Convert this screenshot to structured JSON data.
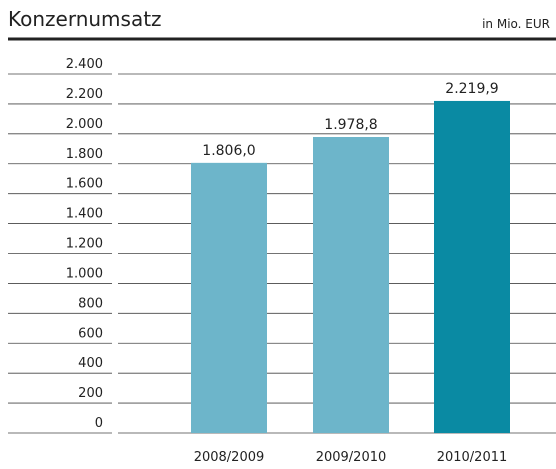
{
  "chart_data": {
    "type": "bar",
    "title": "Konzernumsatz",
    "subtitle": "in Mio. EUR",
    "categories": [
      "2008/2009",
      "2009/2010",
      "2010/2011"
    ],
    "values": [
      1806.0,
      1978.8,
      2219.9
    ],
    "value_labels": [
      "1.806,0",
      "1.978,8",
      "2.219,9"
    ],
    "colors": [
      "#6db5ca",
      "#6db5ca",
      "#0a8aa3"
    ],
    "ylim": [
      0,
      2400
    ],
    "yticks": [
      0,
      200,
      400,
      600,
      800,
      {
        "value": 1000,
        "label": "1.000"
      },
      {
        "value": 1200,
        "label": "1.200"
      },
      {
        "value": 1400,
        "label": "1.400"
      },
      {
        "value": 1600,
        "label": "1.600"
      },
      {
        "value": 1800,
        "label": "1.800"
      },
      {
        "value": 2000,
        "label": "2.000"
      },
      {
        "value": 2200,
        "label": "2.200"
      },
      {
        "value": 2400,
        "label": "2.400"
      }
    ],
    "grid": true
  }
}
